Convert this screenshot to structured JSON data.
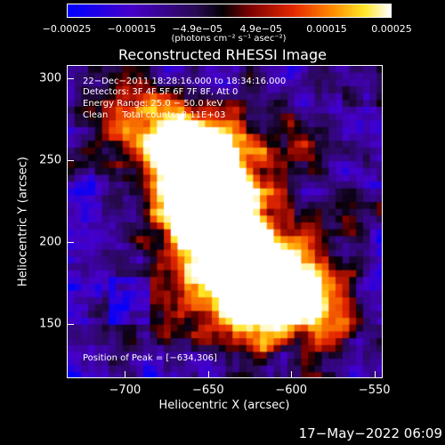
{
  "chart_data": {
    "type": "heatmap",
    "title": "Reconstructed RHESSI Image",
    "xlabel": "Heliocentric X (arcsec)",
    "ylabel": "Heliocentric Y (arcsec)",
    "xlim": [
      -735,
      -545
    ],
    "ylim": [
      117,
      308
    ],
    "x_ticks": [
      "−700",
      "−650",
      "−600",
      "−550"
    ],
    "x_tick_values": [
      -700,
      -650,
      -600,
      -550
    ],
    "y_ticks": [
      "150",
      "200",
      "250",
      "300"
    ],
    "y_tick_values": [
      150,
      200,
      250,
      300
    ],
    "colorbar": {
      "ticks": [
        "−0.00025",
        "−0.00015",
        "−4.9e−05",
        "4.9e−05",
        "0.00015",
        "0.00025"
      ],
      "tick_values": [
        -0.00025,
        -0.00015,
        -4.9e-05,
        4.9e-05,
        0.00015,
        0.00025
      ],
      "units": "(photons cm⁻² s⁻¹ asec⁻²)",
      "range": [
        -0.00025,
        0.00025
      ]
    },
    "annotations": [
      "22−Dec−2011 18:28:16.000 to 18:34:16.000",
      "Detectors: 3F 4F 5F 6F 7F 8F, Att 0",
      "Energy Range: 25.0 − 50.0 keV",
      "Clean     Total counts: 8.11E+03"
    ],
    "peak_label": "Position of Peak = [−634,306]",
    "peak_position": [
      -634,
      306
    ]
  },
  "footer": {
    "date": "17−May−2022 06:09"
  }
}
